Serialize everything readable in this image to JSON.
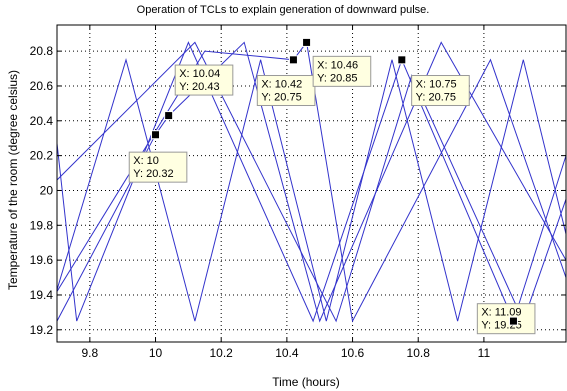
{
  "chart_data": {
    "type": "line",
    "title": "Operation of TCLs to explain generation of downward pulse.",
    "xlabel": "Time (hours)",
    "ylabel": "Temperature of the room (degree celsius)",
    "xlim": [
      9.7,
      11.25
    ],
    "ylim": [
      19.13,
      20.95
    ],
    "xticks": [
      9.8,
      10,
      10.2,
      10.4,
      10.6,
      10.8,
      11
    ],
    "yticks": [
      19.2,
      19.4,
      19.6,
      19.8,
      20,
      20.2,
      20.4,
      20.6,
      20.8
    ],
    "grid": true,
    "line_color": "#3333cc",
    "series": [
      {
        "x": [
          9.7,
          9.91,
          10.12,
          10.32,
          10.52,
          10.72,
          10.92,
          11.12,
          11.25
        ],
        "y": [
          19.43,
          20.75,
          19.25,
          20.75,
          19.25,
          20.75,
          19.25,
          20.75,
          19.75
        ]
      },
      {
        "x": [
          9.7,
          9.76,
          10.1,
          10.48,
          10.75,
          11.09,
          11.25
        ],
        "y": [
          20.27,
          19.25,
          20.85,
          19.25,
          20.75,
          19.25,
          20.2
        ]
      },
      {
        "x": [
          9.7,
          10.12,
          10.55,
          10.78,
          11.12,
          11.25
        ],
        "y": [
          20.06,
          20.85,
          19.25,
          20.66,
          19.25,
          19.95
        ]
      },
      {
        "x": [
          9.7,
          10.15,
          10.42,
          10.46,
          10.6,
          11.02,
          11.25
        ],
        "y": [
          19.42,
          20.8,
          20.75,
          20.85,
          19.25,
          20.75,
          19.5
        ]
      },
      {
        "x": [
          9.7,
          10.0,
          10.04,
          10.27,
          10.5,
          10.87,
          11.25
        ],
        "y": [
          19.25,
          20.32,
          20.43,
          20.85,
          19.25,
          20.85,
          19.6
        ]
      }
    ],
    "datatips": [
      {
        "x_label": "X: 10",
        "y_label": "Y: 20.32",
        "x": 10,
        "y": 20.32,
        "box_x": 9.92,
        "box_y": 20.22
      },
      {
        "x_label": "X: 10.04",
        "y_label": "Y: 20.43",
        "x": 10.04,
        "y": 20.43,
        "box_x": 10.06,
        "box_y": 20.72
      },
      {
        "x_label": "X: 10.42",
        "y_label": "Y: 20.75",
        "x": 10.42,
        "y": 20.75,
        "box_x": 10.31,
        "box_y": 20.66
      },
      {
        "x_label": "X: 10.46",
        "y_label": "Y: 20.85",
        "x": 10.46,
        "y": 20.85,
        "box_x": 10.48,
        "box_y": 20.77
      },
      {
        "x_label": "X: 10.75",
        "y_label": "Y: 20.75",
        "x": 10.75,
        "y": 20.75,
        "box_x": 10.78,
        "box_y": 20.66
      },
      {
        "x_label": "X: 11.09",
        "y_label": "Y: 19.25",
        "x": 11.09,
        "y": 19.25,
        "box_x": 10.98,
        "box_y": 19.35
      }
    ]
  }
}
